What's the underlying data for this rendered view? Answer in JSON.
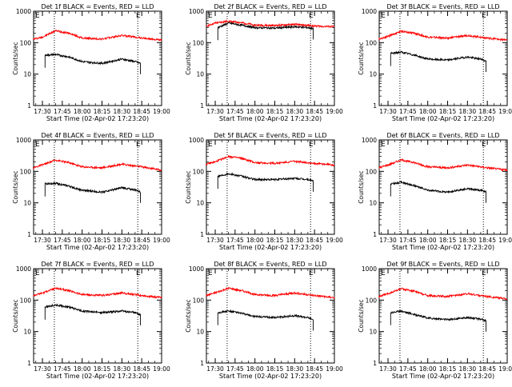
{
  "page": {
    "xlabel": "Start Time (02-Apr-02 17:23:20)",
    "ylabel": "Counts/sec",
    "corner_markers": [
      "E",
      "E"
    ]
  },
  "chart_data": [
    {
      "type": "line",
      "title": "Det 1f BLACK = Events, RED = LLD",
      "xlabel": "Start Time (02-Apr-02 17:23:20)",
      "ylabel": "Counts/sec",
      "yscale": "log",
      "ylim": [
        1,
        1000
      ],
      "xlim": [
        "17:23:20",
        "19:00:00"
      ],
      "xticks": [
        "17:30",
        "17:45",
        "18:00",
        "18:15",
        "18:30",
        "18:45",
        "19:00"
      ],
      "yticks": [
        "1",
        "10",
        "100",
        "1000"
      ],
      "vlines": [
        "17:39",
        "18:42"
      ],
      "series": [
        {
          "name": "LLD",
          "color": "#ff0000",
          "x": [
            "17:23",
            "17:30",
            "17:40",
            "17:50",
            "18:00",
            "18:15",
            "18:30",
            "18:45",
            "19:00"
          ],
          "values": [
            130,
            150,
            240,
            200,
            140,
            130,
            170,
            140,
            120
          ]
        },
        {
          "name": "Events",
          "color": "#000000",
          "x": [
            "17:32",
            "17:40",
            "17:50",
            "18:00",
            "18:15",
            "18:30",
            "18:40",
            "18:44"
          ],
          "values": [
            40,
            42,
            35,
            25,
            22,
            30,
            25,
            22
          ]
        }
      ]
    },
    {
      "type": "line",
      "title": "Det 2f BLACK = Events, RED = LLD",
      "xlabel": "Start Time (02-Apr-02 17:23:20)",
      "ylabel": "Counts/sec",
      "yscale": "log",
      "ylim": [
        1,
        1000
      ],
      "xlim": [
        "17:23:20",
        "19:00:00"
      ],
      "xticks": [
        "17:30",
        "17:45",
        "18:00",
        "18:15",
        "18:30",
        "18:45",
        "19:00"
      ],
      "yticks": [
        "1",
        "10",
        "100",
        "1000"
      ],
      "vlines": [
        "17:39",
        "18:42"
      ],
      "series": [
        {
          "name": "LLD",
          "color": "#ff0000",
          "x": [
            "17:23",
            "17:30",
            "17:40",
            "17:50",
            "18:00",
            "18:15",
            "18:30",
            "18:45",
            "19:00"
          ],
          "values": [
            330,
            420,
            480,
            430,
            360,
            350,
            380,
            340,
            320
          ]
        },
        {
          "name": "Events",
          "color": "#000000",
          "x": [
            "17:32",
            "17:40",
            "17:50",
            "18:00",
            "18:15",
            "18:30",
            "18:40",
            "18:44"
          ],
          "values": [
            300,
            420,
            360,
            300,
            290,
            320,
            300,
            280
          ]
        }
      ]
    },
    {
      "type": "line",
      "title": "Det 3f BLACK = Events, RED = LLD",
      "xlabel": "Start Time (02-Apr-02 17:23:20)",
      "ylabel": "Counts/sec",
      "yscale": "log",
      "ylim": [
        1,
        1000
      ],
      "xlim": [
        "17:23:20",
        "19:00:00"
      ],
      "xticks": [
        "17:30",
        "17:45",
        "18:00",
        "18:15",
        "18:30",
        "18:45",
        "19:00"
      ],
      "yticks": [
        "1",
        "10",
        "100",
        "1000"
      ],
      "vlines": [
        "17:39",
        "18:42"
      ],
      "series": [
        {
          "name": "LLD",
          "color": "#ff0000",
          "x": [
            "17:23",
            "17:30",
            "17:40",
            "17:50",
            "18:00",
            "18:15",
            "18:30",
            "18:45",
            "19:00"
          ],
          "values": [
            130,
            160,
            230,
            200,
            150,
            140,
            170,
            140,
            120
          ]
        },
        {
          "name": "Events",
          "color": "#000000",
          "x": [
            "17:32",
            "17:40",
            "17:50",
            "18:00",
            "18:15",
            "18:30",
            "18:40",
            "18:44"
          ],
          "values": [
            45,
            50,
            40,
            30,
            28,
            35,
            30,
            26
          ]
        }
      ]
    },
    {
      "type": "line",
      "title": "Det 4f BLACK = Events, RED = LLD",
      "xlabel": "Start Time (02-Apr-02 17:23:20)",
      "ylabel": "Counts/sec",
      "yscale": "log",
      "ylim": [
        1,
        1000
      ],
      "xlim": [
        "17:23:20",
        "19:00:00"
      ],
      "xticks": [
        "17:30",
        "17:45",
        "18:00",
        "18:15",
        "18:30",
        "18:45",
        "19:00"
      ],
      "yticks": [
        "1",
        "10",
        "100",
        "1000"
      ],
      "vlines": [
        "17:39",
        "18:42"
      ],
      "series": [
        {
          "name": "LLD",
          "color": "#ff0000",
          "x": [
            "17:23",
            "17:30",
            "17:40",
            "17:50",
            "18:00",
            "18:15",
            "18:30",
            "18:45",
            "19:00"
          ],
          "values": [
            130,
            160,
            230,
            190,
            140,
            130,
            170,
            140,
            110
          ]
        },
        {
          "name": "Events",
          "color": "#000000",
          "x": [
            "17:32",
            "17:40",
            "17:50",
            "18:00",
            "18:15",
            "18:30",
            "18:40",
            "18:44"
          ],
          "values": [
            40,
            42,
            34,
            25,
            22,
            30,
            26,
            22
          ]
        }
      ]
    },
    {
      "type": "line",
      "title": "Det 5f BLACK = Events, RED = LLD",
      "xlabel": "Start Time (02-Apr-02 17:23:20)",
      "ylabel": "Counts/sec",
      "yscale": "log",
      "ylim": [
        1,
        1000
      ],
      "xlim": [
        "17:23:20",
        "19:00:00"
      ],
      "xticks": [
        "17:30",
        "17:45",
        "18:00",
        "18:15",
        "18:30",
        "18:45",
        "19:00"
      ],
      "yticks": [
        "1",
        "10",
        "100",
        "1000"
      ],
      "vlines": [
        "17:39",
        "18:42"
      ],
      "series": [
        {
          "name": "LLD",
          "color": "#ff0000",
          "x": [
            "17:23",
            "17:30",
            "17:40",
            "17:50",
            "18:00",
            "18:15",
            "18:30",
            "18:45",
            "19:00"
          ],
          "values": [
            170,
            200,
            300,
            260,
            190,
            180,
            210,
            180,
            160
          ]
        },
        {
          "name": "Events",
          "color": "#000000",
          "x": [
            "17:32",
            "17:40",
            "17:50",
            "18:00",
            "18:15",
            "18:30",
            "18:40",
            "18:44"
          ],
          "values": [
            70,
            85,
            70,
            55,
            55,
            60,
            55,
            50
          ]
        }
      ]
    },
    {
      "type": "line",
      "title": "Det 6f BLACK = Events, RED = LLD",
      "xlabel": "Start Time (02-Apr-02 17:23:20)",
      "ylabel": "Counts/sec",
      "yscale": "log",
      "ylim": [
        1,
        1000
      ],
      "xlim": [
        "17:23:20",
        "19:00:00"
      ],
      "xticks": [
        "17:30",
        "17:45",
        "18:00",
        "18:15",
        "18:30",
        "18:45",
        "19:00"
      ],
      "yticks": [
        "1",
        "10",
        "100",
        "1000"
      ],
      "vlines": [
        "17:39",
        "18:42"
      ],
      "series": [
        {
          "name": "LLD",
          "color": "#ff0000",
          "x": [
            "17:23",
            "17:30",
            "17:40",
            "17:50",
            "18:00",
            "18:15",
            "18:30",
            "18:45",
            "19:00"
          ],
          "values": [
            130,
            160,
            230,
            190,
            140,
            130,
            160,
            130,
            110
          ]
        },
        {
          "name": "Events",
          "color": "#000000",
          "x": [
            "17:32",
            "17:40",
            "17:50",
            "18:00",
            "18:15",
            "18:30",
            "18:40",
            "18:44"
          ],
          "values": [
            40,
            45,
            35,
            25,
            22,
            28,
            25,
            22
          ]
        }
      ]
    },
    {
      "type": "line",
      "title": "Det 7f BLACK = Events, RED = LLD",
      "xlabel": "Start Time (02-Apr-02 17:23:20)",
      "ylabel": "Counts/sec",
      "yscale": "log",
      "ylim": [
        1,
        1000
      ],
      "xlim": [
        "17:23:20",
        "19:00:00"
      ],
      "xticks": [
        "17:30",
        "17:45",
        "18:00",
        "18:15",
        "18:30",
        "18:45",
        "19:00"
      ],
      "yticks": [
        "1",
        "10",
        "100",
        "1000"
      ],
      "vlines": [
        "17:39",
        "18:42"
      ],
      "series": [
        {
          "name": "LLD",
          "color": "#ff0000",
          "x": [
            "17:23",
            "17:30",
            "17:40",
            "17:50",
            "18:00",
            "18:15",
            "18:30",
            "18:45",
            "19:00"
          ],
          "values": [
            140,
            170,
            240,
            200,
            150,
            140,
            170,
            140,
            120
          ]
        },
        {
          "name": "Events",
          "color": "#000000",
          "x": [
            "17:32",
            "17:40",
            "17:50",
            "18:00",
            "18:15",
            "18:30",
            "18:40",
            "18:44"
          ],
          "values": [
            60,
            70,
            60,
            45,
            40,
            45,
            40,
            35
          ]
        }
      ]
    },
    {
      "type": "line",
      "title": "Det 8f BLACK = Events, RED = LLD",
      "xlabel": "Start Time (02-Apr-02 17:23:20)",
      "ylabel": "Counts/sec",
      "yscale": "log",
      "ylim": [
        1,
        1000
      ],
      "xlim": [
        "17:23:20",
        "19:00:00"
      ],
      "xticks": [
        "17:30",
        "17:45",
        "18:00",
        "18:15",
        "18:30",
        "18:45",
        "19:00"
      ],
      "yticks": [
        "1",
        "10",
        "100",
        "1000"
      ],
      "vlines": [
        "17:39",
        "18:42"
      ],
      "series": [
        {
          "name": "LLD",
          "color": "#ff0000",
          "x": [
            "17:23",
            "17:30",
            "17:40",
            "17:50",
            "18:00",
            "18:15",
            "18:30",
            "18:45",
            "19:00"
          ],
          "values": [
            140,
            170,
            240,
            200,
            150,
            140,
            170,
            140,
            120
          ]
        },
        {
          "name": "Events",
          "color": "#000000",
          "x": [
            "17:32",
            "17:40",
            "17:50",
            "18:00",
            "18:15",
            "18:30",
            "18:40",
            "18:44"
          ],
          "values": [
            40,
            45,
            38,
            30,
            28,
            32,
            28,
            24
          ]
        }
      ]
    },
    {
      "type": "line",
      "title": "Det 9f BLACK = Events, RED = LLD",
      "xlabel": "Start Time (02-Apr-02 17:23:20)",
      "ylabel": "Counts/sec",
      "yscale": "log",
      "ylim": [
        1,
        1000
      ],
      "xlim": [
        "17:23:20",
        "19:00:00"
      ],
      "xticks": [
        "17:30",
        "17:45",
        "18:00",
        "18:15",
        "18:30",
        "18:45",
        "19:00"
      ],
      "yticks": [
        "1",
        "10",
        "100",
        "1000"
      ],
      "vlines": [
        "17:39",
        "18:42"
      ],
      "series": [
        {
          "name": "LLD",
          "color": "#ff0000",
          "x": [
            "17:23",
            "17:30",
            "17:40",
            "17:50",
            "18:00",
            "18:15",
            "18:30",
            "18:45",
            "19:00"
          ],
          "values": [
            130,
            160,
            230,
            190,
            140,
            130,
            160,
            130,
            110
          ]
        },
        {
          "name": "Events",
          "color": "#000000",
          "x": [
            "17:32",
            "17:40",
            "17:50",
            "18:00",
            "18:15",
            "18:30",
            "18:40",
            "18:44"
          ],
          "values": [
            40,
            45,
            35,
            27,
            24,
            28,
            25,
            22
          ]
        }
      ]
    }
  ]
}
